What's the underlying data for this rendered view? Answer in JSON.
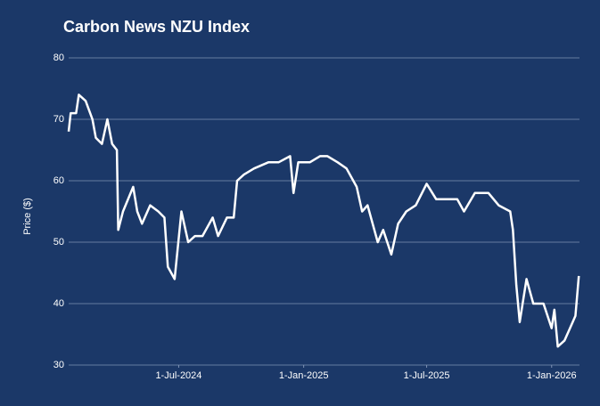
{
  "chart_data": {
    "type": "line",
    "title": "Carbon News NZU Index",
    "ylabel": "Price ($)",
    "x": [
      "2024-01-21",
      "2024-01-24",
      "2024-02-01",
      "2024-02-05",
      "2024-02-15",
      "2024-02-25",
      "2024-03-01",
      "2024-03-10",
      "2024-03-18",
      "2024-03-25",
      "2024-04-01",
      "2024-04-03",
      "2024-04-10",
      "2024-04-25",
      "2024-05-01",
      "2024-05-08",
      "2024-05-20",
      "2024-06-01",
      "2024-06-10",
      "2024-06-15",
      "2024-06-25",
      "2024-07-05",
      "2024-07-15",
      "2024-07-25",
      "2024-08-05",
      "2024-08-20",
      "2024-08-28",
      "2024-09-10",
      "2024-09-20",
      "2024-09-25",
      "2024-10-05",
      "2024-10-20",
      "2024-11-10",
      "2024-11-25",
      "2024-12-12",
      "2024-12-17",
      "2024-12-24",
      "2025-01-10",
      "2025-01-25",
      "2025-02-05",
      "2025-02-20",
      "2025-03-05",
      "2025-03-20",
      "2025-03-28",
      "2025-04-05",
      "2025-04-20",
      "2025-04-28",
      "2025-05-10",
      "2025-05-20",
      "2025-06-01",
      "2025-06-15",
      "2025-07-01",
      "2025-07-15",
      "2025-08-01",
      "2025-08-15",
      "2025-08-25",
      "2025-09-10",
      "2025-09-30",
      "2025-10-15",
      "2025-11-01",
      "2025-11-05",
      "2025-11-10",
      "2025-11-15",
      "2025-11-25",
      "2025-12-05",
      "2025-12-20",
      "2026-01-01",
      "2026-01-05",
      "2026-01-10",
      "2026-01-20",
      "2026-02-01",
      "2026-02-05",
      "2026-02-10"
    ],
    "series": [
      {
        "name": "NZU",
        "color": "#ffffff",
        "values": [
          68,
          71,
          71,
          74,
          73,
          70,
          67,
          66,
          70,
          66,
          65,
          52,
          55,
          59,
          55,
          53,
          56,
          55,
          54,
          46,
          44,
          55,
          50,
          51,
          51,
          54,
          51,
          54,
          54,
          60,
          61,
          62,
          63,
          63,
          64,
          58,
          63,
          63,
          64,
          64,
          63,
          62,
          59,
          55,
          56,
          50,
          52,
          48,
          53,
          55,
          56,
          59.5,
          57,
          57,
          57,
          55,
          58,
          58,
          56,
          55,
          52,
          43,
          37,
          44,
          40,
          40,
          36,
          39,
          33,
          34,
          37,
          38,
          44.5
        ]
      }
    ],
    "xlim": [
      "2024-01-21",
      "2026-02-11"
    ],
    "xticks": [
      {
        "value": "2024-07-01",
        "label": "1-Jul-2024"
      },
      {
        "value": "2025-01-01",
        "label": "1-Jan-2025"
      },
      {
        "value": "2025-07-01",
        "label": "1-Jul-2025"
      },
      {
        "value": "2026-01-01",
        "label": "1-Jan-2026"
      }
    ],
    "ylim": [
      30,
      80
    ],
    "yticks": [
      30,
      40,
      50,
      60,
      70,
      80
    ],
    "grid": true
  }
}
